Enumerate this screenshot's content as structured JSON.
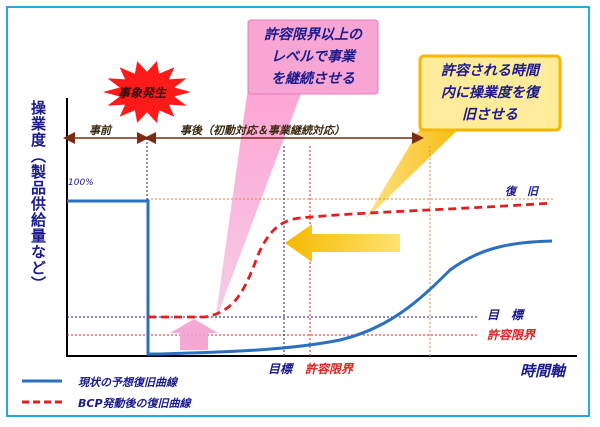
{
  "diagram": {
    "y_axis_label": "操業度（製品供給量など）",
    "x_axis_label": "時間軸",
    "hundred_percent": "100%",
    "event_burst": "事象発生",
    "phase_before": "事前",
    "phase_after": "事後（初動対応＆事業継続対応）",
    "line_labels": {
      "recovery": "復　旧",
      "target": "目　標",
      "tolerance": "許容限界"
    },
    "axis_markers": {
      "target": "目標",
      "tolerance": "許容限界"
    },
    "callout_pink": [
      "許容限界以上の",
      "レベルで事業",
      "を継続させる"
    ],
    "callout_yellow": [
      "許容される時間",
      "内に操業度を復",
      "旧させる"
    ],
    "legend": [
      {
        "label": "現状の予想復旧曲線",
        "color": "#2b6fc0",
        "style": "solid"
      },
      {
        "label": "BCP発動後の復旧曲線",
        "color": "#e02020",
        "style": "dashed"
      }
    ],
    "colors": {
      "frame": "#29a8e0",
      "navy": "#1a1a8c",
      "red": "#e02020",
      "pink": "#f07cc0",
      "yellow": "#f8c800",
      "orange_line": "#e08a30"
    }
  }
}
